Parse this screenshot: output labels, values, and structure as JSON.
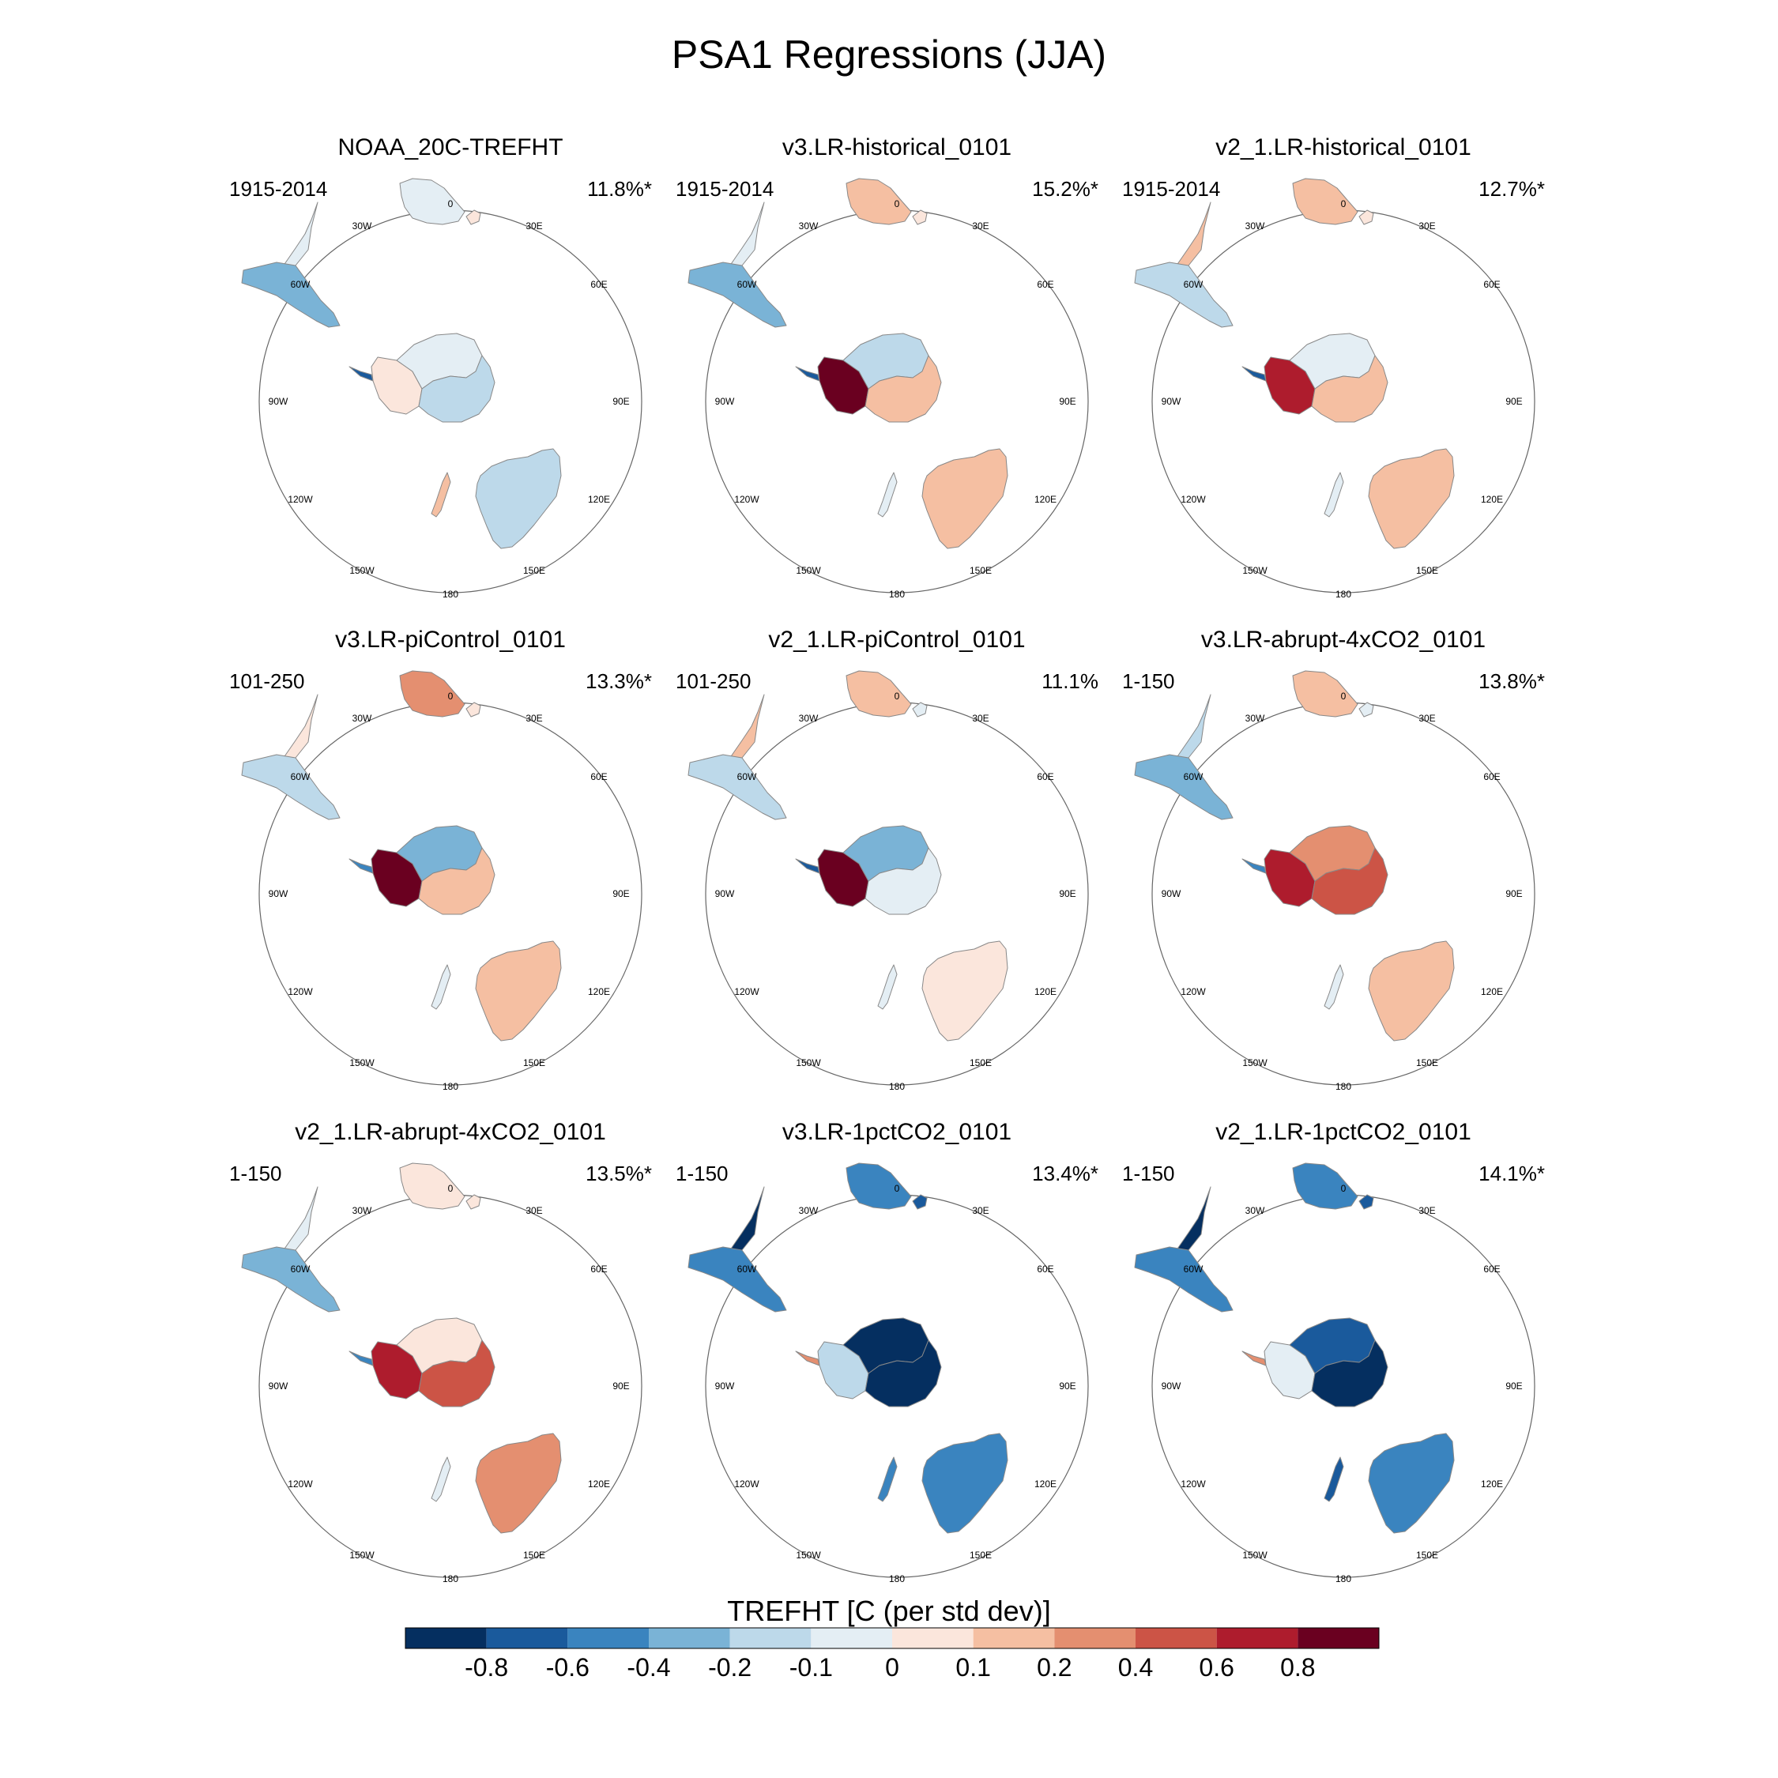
{
  "title": "PSA1 Regressions (JJA)",
  "colors": {
    "palette": [
      "#052f60",
      "#1a5a9c",
      "#3a84bf",
      "#7ab3d6",
      "#bdd9ea",
      "#e4eef4",
      "#fbe6dc",
      "#f5bfa2",
      "#e48f70",
      "#cc5446",
      "#ae1c2d",
      "#6a0020"
    ],
    "land_outline": "#888888",
    "circle": "#666666"
  },
  "lon_labels": [
    "0",
    "30E",
    "60E",
    "90E",
    "120E",
    "150E",
    "180",
    "150W",
    "120W",
    "90W",
    "60W",
    "30W"
  ],
  "panels": [
    {
      "title": "NOAA_20C-TREFHT",
      "years": "1915-2014",
      "pct": "11.8%*",
      "fill": {
        "africa": 5,
        "madagascar": 6,
        "sa_north": 5,
        "sa_south": 3,
        "ant_east": 4,
        "ant_center": 5,
        "ant_west": 6,
        "ant_pen": 1,
        "australia": 4,
        "nz": 7
      }
    },
    {
      "title": "v3.LR-historical_0101",
      "years": "1915-2014",
      "pct": "15.2%*",
      "fill": {
        "africa": 7,
        "madagascar": 6,
        "sa_north": 5,
        "sa_south": 3,
        "ant_east": 7,
        "ant_center": 4,
        "ant_west": 11,
        "ant_pen": 1,
        "australia": 7,
        "nz": 5
      }
    },
    {
      "title": "v2_1.LR-historical_0101",
      "years": "1915-2014",
      "pct": "12.7%*",
      "fill": {
        "africa": 7,
        "madagascar": 6,
        "sa_north": 7,
        "sa_south": 4,
        "ant_east": 7,
        "ant_center": 5,
        "ant_west": 10,
        "ant_pen": 1,
        "australia": 7,
        "nz": 5
      }
    },
    {
      "title": "v3.LR-piControl_0101",
      "years": "101-250",
      "pct": "13.3%*",
      "fill": {
        "africa": 8,
        "madagascar": 6,
        "sa_north": 6,
        "sa_south": 4,
        "ant_east": 7,
        "ant_center": 3,
        "ant_west": 11,
        "ant_pen": 2,
        "australia": 7,
        "nz": 5
      }
    },
    {
      "title": "v2_1.LR-piControl_0101",
      "years": "101-250",
      "pct": "11.1%",
      "fill": {
        "africa": 7,
        "madagascar": 5,
        "sa_north": 7,
        "sa_south": 4,
        "ant_east": 5,
        "ant_center": 3,
        "ant_west": 11,
        "ant_pen": 1,
        "australia": 6,
        "nz": 5
      }
    },
    {
      "title": "v3.LR-abrupt-4xCO2_0101",
      "years": "1-150",
      "pct": "13.8%*",
      "fill": {
        "africa": 7,
        "madagascar": 5,
        "sa_north": 4,
        "sa_south": 3,
        "ant_east": 9,
        "ant_center": 8,
        "ant_west": 10,
        "ant_pen": 2,
        "australia": 7,
        "nz": 5
      }
    },
    {
      "title": "v2_1.LR-abrupt-4xCO2_0101",
      "years": "1-150",
      "pct": "13.5%*",
      "fill": {
        "africa": 6,
        "madagascar": 6,
        "sa_north": 5,
        "sa_south": 3,
        "ant_east": 9,
        "ant_center": 6,
        "ant_west": 10,
        "ant_pen": 2,
        "australia": 8,
        "nz": 5
      }
    },
    {
      "title": "v3.LR-1pctCO2_0101",
      "years": "1-150",
      "pct": "13.4%*",
      "fill": {
        "africa": 2,
        "madagascar": 1,
        "sa_north": 0,
        "sa_south": 2,
        "ant_east": 0,
        "ant_center": 0,
        "ant_west": 4,
        "ant_pen": 8,
        "australia": 2,
        "nz": 2
      }
    },
    {
      "title": "v2_1.LR-1pctCO2_0101",
      "years": "1-150",
      "pct": "14.1%*",
      "fill": {
        "africa": 2,
        "madagascar": 1,
        "sa_north": 0,
        "sa_south": 2,
        "ant_east": 0,
        "ant_center": 1,
        "ant_west": 5,
        "ant_pen": 8,
        "australia": 2,
        "nz": 1
      }
    }
  ],
  "colorbar": {
    "title": "TREFHT [C (per std dev)]",
    "tick_labels": [
      "-0.8",
      "-0.6",
      "-0.4",
      "-0.2",
      "-0.1",
      "0",
      "0.1",
      "0.2",
      "0.4",
      "0.6",
      "0.8"
    ]
  }
}
